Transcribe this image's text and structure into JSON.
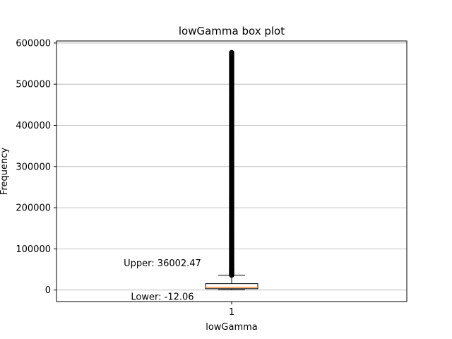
{
  "chart_data": {
    "type": "box",
    "title": "lowGamma box plot",
    "xlabel": "lowGamma",
    "ylabel": "Frequency",
    "categories": [
      "1"
    ],
    "ylim": [
      -28000,
      605000
    ],
    "yticks": [
      0,
      100000,
      200000,
      300000,
      400000,
      500000,
      600000
    ],
    "ytick_labels": [
      "0",
      "100000",
      "200000",
      "300000",
      "400000",
      "500000",
      "600000"
    ],
    "grid": "y",
    "box": {
      "whisker_low": 700,
      "q1": 3200,
      "median": 6500,
      "q3": 15500,
      "whisker_high": 36000
    },
    "outliers_range": [
      36000,
      577000
    ],
    "annotations": [
      {
        "text": "Upper: 36002.47",
        "y": 66000
      },
      {
        "text": "Lower: -12.06",
        "y": -15000
      }
    ],
    "colors": {
      "box": "#000000",
      "median": "#ff7f0e",
      "grid": "#b0b0b0",
      "flier": "#000000"
    }
  }
}
